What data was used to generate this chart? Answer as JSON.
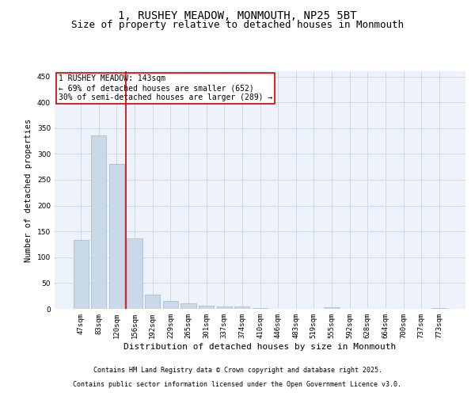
{
  "title": "1, RUSHEY MEADOW, MONMOUTH, NP25 5BT",
  "subtitle": "Size of property relative to detached houses in Monmouth",
  "xlabel": "Distribution of detached houses by size in Monmouth",
  "ylabel": "Number of detached properties",
  "categories": [
    "47sqm",
    "83sqm",
    "120sqm",
    "156sqm",
    "192sqm",
    "229sqm",
    "265sqm",
    "301sqm",
    "337sqm",
    "374sqm",
    "410sqm",
    "446sqm",
    "483sqm",
    "519sqm",
    "555sqm",
    "592sqm",
    "628sqm",
    "664sqm",
    "700sqm",
    "737sqm",
    "773sqm"
  ],
  "values": [
    134,
    336,
    281,
    136,
    28,
    15,
    11,
    6,
    5,
    4,
    2,
    0,
    0,
    0,
    3,
    0,
    0,
    0,
    0,
    0,
    2
  ],
  "bar_color": "#c9d9e8",
  "bar_edge_color": "#a0b8cc",
  "grid_color": "#d0d8e8",
  "background_color": "#eef2fa",
  "annotation_box_color": "#cc0000",
  "annotation_text": "1 RUSHEY MEADOW: 143sqm\n← 69% of detached houses are smaller (652)\n30% of semi-detached houses are larger (289) →",
  "marker_line_color": "#cc0000",
  "ylim": [
    0,
    460
  ],
  "yticks": [
    0,
    50,
    100,
    150,
    200,
    250,
    300,
    350,
    400,
    450
  ],
  "footer_line1": "Contains HM Land Registry data © Crown copyright and database right 2025.",
  "footer_line2": "Contains public sector information licensed under the Open Government Licence v3.0.",
  "title_fontsize": 10,
  "subtitle_fontsize": 9,
  "axis_label_fontsize": 7.5,
  "tick_fontsize": 6.5,
  "annotation_fontsize": 7,
  "footer_fontsize": 6
}
